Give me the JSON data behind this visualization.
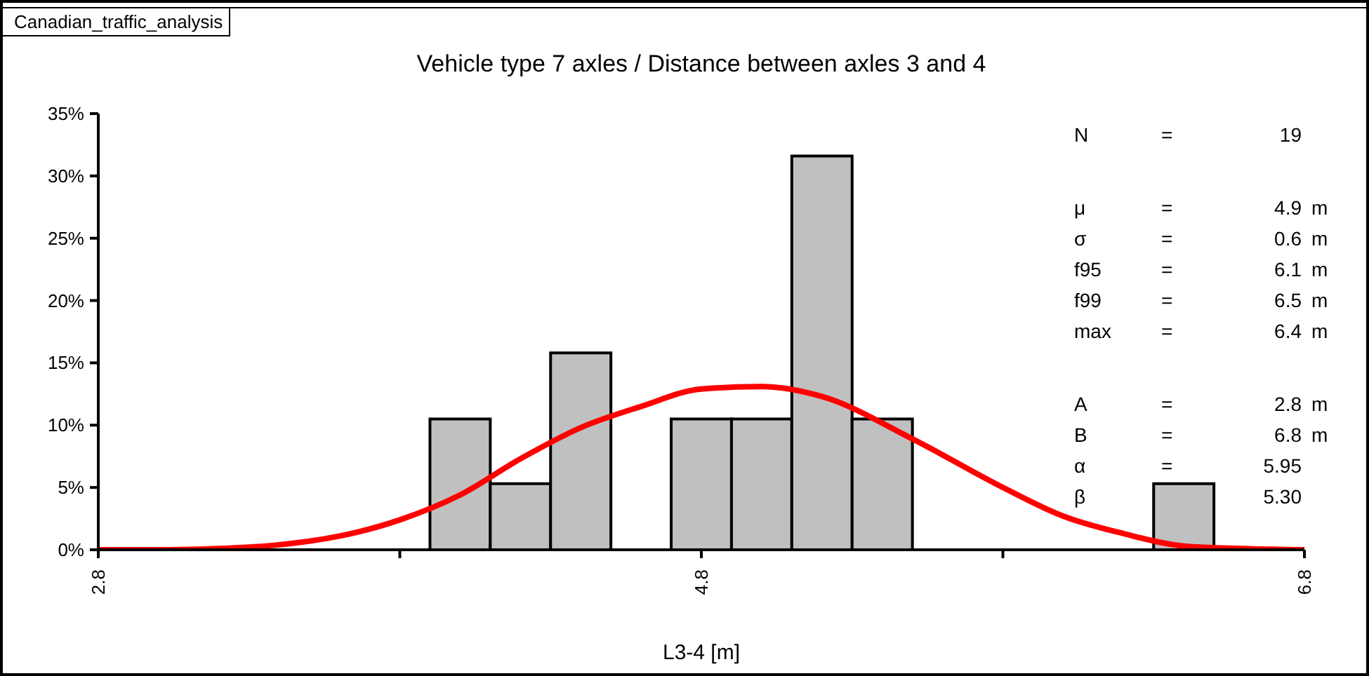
{
  "chart_data": {
    "type": "histogram",
    "title": "Vehicle type 7 axles / Distance between axles 3 and 4",
    "xlabel": "L3-4 [m]",
    "bins": [
      3.9,
      4.1,
      4.3,
      4.5,
      4.7,
      4.9,
      5.1,
      5.3,
      5.5,
      5.7,
      5.9,
      6.1,
      6.3,
      6.5
    ],
    "values": [
      10.5,
      5.3,
      15.8,
      0,
      10.5,
      10.5,
      31.6,
      10.5,
      0,
      0,
      0,
      0,
      5.3
    ],
    "color": "#c0c0c0",
    "series": [
      {
        "type": "line",
        "color": "#ff0000",
        "x": [
          2.8,
          3.0,
          3.2,
          3.4,
          3.6,
          3.8,
          4.0,
          4.2,
          4.4,
          4.6,
          4.8,
          5.0,
          5.2,
          5.5,
          5.8,
          6.0,
          6.2,
          6.4,
          6.6,
          6.8
        ],
        "values": [
          0,
          0,
          0.1,
          0.4,
          1.1,
          2.4,
          4.4,
          7.3,
          9.8,
          11.5,
          12.9,
          13.1,
          12.3,
          8.9,
          5.0,
          2.7,
          1.3,
          0.3,
          0.1,
          0
        ]
      }
    ],
    "xlim": [
      2.8,
      6.8
    ],
    "xticks": [
      2.8,
      {
        "value": 3.8,
        "label": null
      },
      4.8,
      {
        "value": 5.8,
        "label": null
      },
      6.8
    ],
    "ylim": [
      0,
      35
    ],
    "yticks": [
      {
        "value": 0,
        "label": "0%"
      },
      {
        "value": 5,
        "label": "5%"
      },
      {
        "value": 10,
        "label": "10%"
      },
      {
        "value": 15,
        "label": "15%"
      },
      {
        "value": 20,
        "label": "20%"
      },
      {
        "value": 25,
        "label": "25%"
      },
      {
        "value": 30,
        "label": "30%"
      },
      {
        "value": 35,
        "label": "35%"
      }
    ],
    "grid": false,
    "marker": "none",
    "annotations": [
      "Canadian_traffic_analysis",
      "N = 19",
      "μ = 4.9 m",
      "σ = 0.6 m",
      "f95 = 6.1 m",
      "f99 = 6.5 m",
      "max = 6.4 m",
      "A = 2.8 m",
      "B = 6.8 m",
      "α = 5.95",
      "β 5.30"
    ]
  }
}
